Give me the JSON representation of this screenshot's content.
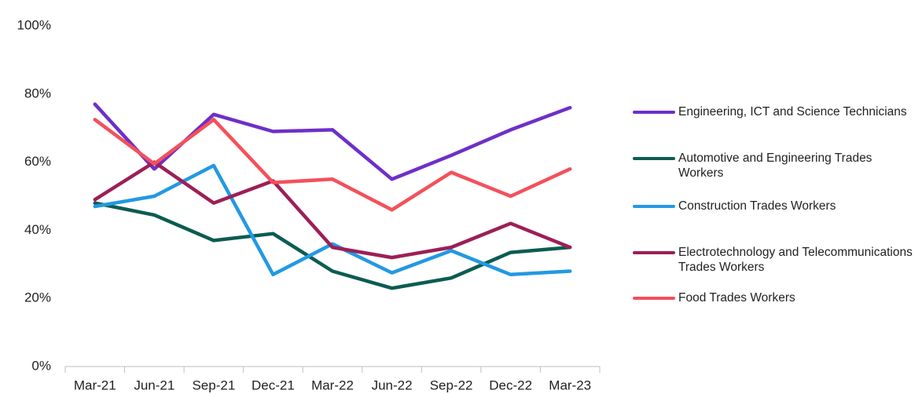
{
  "chart_data": {
    "type": "line",
    "categories": [
      "Mar-21",
      "Jun-21",
      "Sep-21",
      "Dec-21",
      "Mar-22",
      "Jun-22",
      "Sep-22",
      "Dec-22",
      "Mar-23"
    ],
    "series": [
      {
        "name": "Engineering, ICT and Science Technicians",
        "color": "#6e2fc9",
        "values": [
          77,
          58,
          74,
          69,
          69.5,
          55,
          62,
          69.5,
          76
        ]
      },
      {
        "name": "Automotive and Engineering Trades Workers",
        "color": "#0b5c52",
        "values": [
          48,
          44.5,
          37,
          39,
          28,
          23,
          26,
          33.5,
          35
        ]
      },
      {
        "name": "Construction Trades Workers",
        "color": "#2399e2",
        "values": [
          47,
          50,
          59,
          27,
          36,
          27.5,
          34,
          27,
          28
        ]
      },
      {
        "name": "Electrotechnology and Telecommunications Trades Workers",
        "color": "#9c1f57",
        "values": [
          49,
          60,
          48,
          54.5,
          35,
          32,
          35,
          42,
          35
        ]
      },
      {
        "name": "Food Trades Workers",
        "color": "#f4505b",
        "values": [
          72.5,
          59.5,
          72.5,
          54,
          55,
          46,
          57,
          50,
          58
        ]
      }
    ],
    "ylim": [
      0,
      100
    ],
    "yticks": [
      {
        "value": 0,
        "label": "0%"
      },
      {
        "value": 20,
        "label": "20%"
      },
      {
        "value": 40,
        "label": "40%"
      },
      {
        "value": 60,
        "label": "60%"
      },
      {
        "value": 80,
        "label": "80%"
      },
      {
        "value": 100,
        "label": "100%"
      }
    ],
    "legend": "right",
    "grid": false
  }
}
